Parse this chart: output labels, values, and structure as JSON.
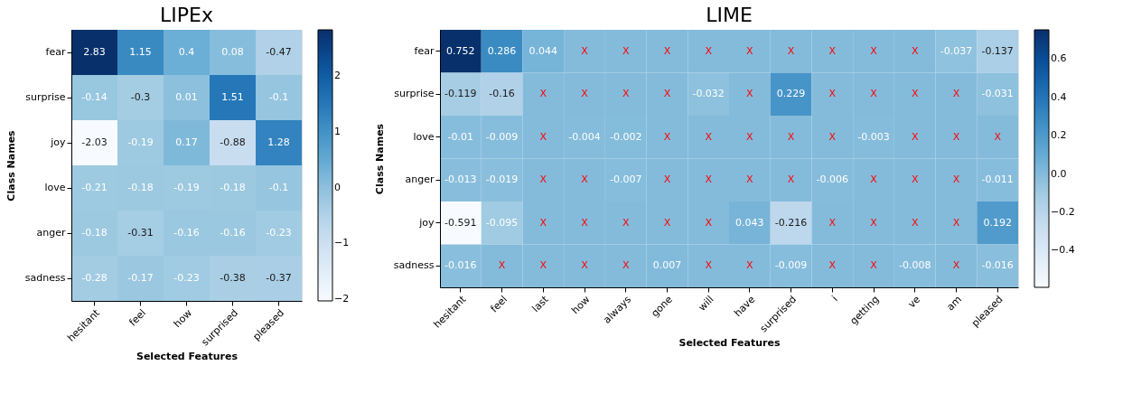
{
  "chart_data": [
    {
      "type": "heatmap",
      "title": "LIPEx",
      "xlabel": "Selected Features",
      "ylabel": "Class Names",
      "categories": [
        "hesitant",
        "feel",
        "how",
        "surprised",
        "pleased"
      ],
      "y_categories": [
        "fear",
        "surprise",
        "joy",
        "love",
        "anger",
        "sadness"
      ],
      "cells": [
        [
          2.83,
          1.15,
          0.4,
          0.08,
          -0.47
        ],
        [
          -0.14,
          -0.3,
          0.01,
          1.51,
          -0.1
        ],
        [
          -2.03,
          -0.19,
          0.17,
          -0.88,
          1.28
        ],
        [
          -0.21,
          -0.18,
          -0.19,
          -0.18,
          -0.1
        ],
        [
          -0.18,
          -0.31,
          -0.16,
          -0.16,
          -0.23
        ],
        [
          -0.28,
          -0.17,
          -0.23,
          -0.38,
          -0.37
        ]
      ],
      "data_labels": true,
      "clim": [
        -2.03,
        2.83
      ],
      "cticks": [
        {
          "value": -2,
          "label": "−2"
        },
        {
          "value": -1,
          "label": "−1"
        },
        0,
        1,
        2
      ]
    },
    {
      "type": "heatmap",
      "title": "LIME",
      "xlabel": "Selected Features",
      "ylabel": "Class Names",
      "categories": [
        "hesitant",
        "feel",
        "last",
        "how",
        "always",
        "gone",
        "will",
        "have",
        "surprised",
        "i",
        "getting",
        "ve",
        "am",
        "pleased"
      ],
      "y_categories": [
        "fear",
        "surprise",
        "love",
        "anger",
        "joy",
        "sadness"
      ],
      "cells": [
        [
          0.752,
          0.286,
          0.044,
          0,
          0,
          0,
          0,
          0,
          0,
          0,
          0,
          0,
          -0.037,
          -0.137
        ],
        [
          -0.119,
          -0.16,
          0,
          0,
          0,
          0,
          -0.032,
          0,
          0.229,
          0,
          0,
          0,
          0,
          -0.031
        ],
        [
          -0.01,
          -0.009,
          0,
          -0.004,
          -0.002,
          0,
          0,
          0,
          0,
          0,
          -0.003,
          0,
          0,
          0
        ],
        [
          -0.013,
          -0.019,
          0,
          0,
          -0.007,
          0,
          0,
          0,
          0,
          -0.006,
          0,
          0,
          0,
          -0.011
        ],
        [
          -0.591,
          -0.095,
          0,
          0,
          0,
          0,
          0,
          0.043,
          -0.216,
          0,
          0,
          0,
          0,
          0.192
        ],
        [
          -0.016,
          0,
          0,
          0,
          0,
          0.007,
          0,
          0,
          -0.009,
          0,
          0,
          -0.008,
          0,
          -0.016
        ]
      ],
      "cell_labels": [
        [
          "0.752",
          "0.286",
          "0.044",
          "X",
          "X",
          "X",
          "X",
          "X",
          "X",
          "X",
          "X",
          "X",
          "-0.037",
          "-0.137"
        ],
        [
          "-0.119",
          "-0.16",
          "X",
          "X",
          "X",
          "X",
          "-0.032",
          "X",
          "0.229",
          "X",
          "X",
          "X",
          "X",
          "-0.031"
        ],
        [
          "-0.01",
          "-0.009",
          "X",
          "-0.004",
          "-0.002",
          "X",
          "X",
          "X",
          "X",
          "X",
          "-0.003",
          "X",
          "X",
          "X"
        ],
        [
          "-0.013",
          "-0.019",
          "X",
          "X",
          "-0.007",
          "X",
          "X",
          "X",
          "X",
          "-0.006",
          "X",
          "X",
          "X",
          "-0.011"
        ],
        [
          "-0.591",
          "-0.095",
          "X",
          "X",
          "X",
          "X",
          "X",
          "0.043",
          "-0.216",
          "X",
          "X",
          "X",
          "X",
          "0.192"
        ],
        [
          "-0.016",
          "X",
          "X",
          "X",
          "X",
          "0.007",
          "X",
          "X",
          "-0.009",
          "X",
          "X",
          "-0.008",
          "X",
          "-0.016"
        ]
      ],
      "data_labels": true,
      "clim": [
        -0.591,
        0.752
      ],
      "cticks": [
        {
          "value": -0.4,
          "label": "−0.4"
        },
        {
          "value": -0.2,
          "label": "−0.2"
        },
        {
          "value": 0,
          "label": "0.0"
        },
        0.2,
        0.4,
        0.6
      ]
    }
  ]
}
